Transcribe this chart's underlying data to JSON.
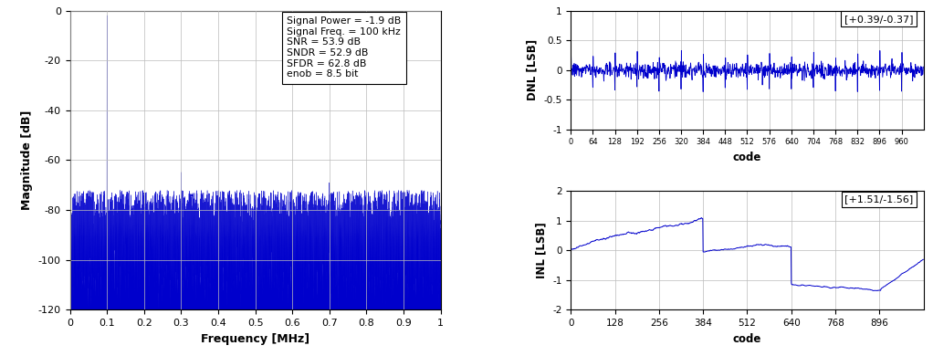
{
  "fft_xlabel": "Frequency [MHz]",
  "fft_ylabel": "Magnitude [dB]",
  "fft_xlim": [
    0,
    1
  ],
  "fft_ylim": [
    -120,
    0
  ],
  "fft_yticks": [
    0,
    -20,
    -40,
    -60,
    -80,
    -100,
    -120
  ],
  "fft_xticks": [
    0,
    0.1,
    0.2,
    0.3,
    0.4,
    0.5,
    0.6,
    0.7,
    0.8,
    0.9,
    1.0
  ],
  "fft_xtick_labels": [
    "0",
    "0.1",
    "0.2",
    "0.3",
    "0.4",
    "0.5",
    "0.6",
    "0.7",
    "0.8",
    "0.9",
    "1"
  ],
  "fft_ytick_labels": [
    "0",
    "-20",
    "-40",
    "-60",
    "-80",
    "-100",
    "-120"
  ],
  "fft_annotations": [
    "Signal Power = -1.9 dB",
    "Signal Freq. = 100 kHz",
    "SNR = 53.9 dB",
    "SNDR = 52.9 dB",
    "SFDR = 62.8 dB",
    "enob = 8.5 bit"
  ],
  "dnl_xlabel": "code",
  "dnl_ylabel": "DNL [LSB]",
  "dnl_xlim": [
    0,
    1024
  ],
  "dnl_ylim": [
    -1,
    1
  ],
  "dnl_yticks": [
    -1,
    -0.5,
    0,
    0.5,
    1
  ],
  "dnl_ytick_labels": [
    "-1",
    "-0.5",
    "0",
    "0.5",
    "1"
  ],
  "dnl_xticks": [
    0,
    64,
    128,
    192,
    256,
    320,
    384,
    448,
    512,
    576,
    640,
    704,
    768,
    832,
    896,
    960
  ],
  "dnl_label": "[+0.39/-0.37]",
  "inl_xlabel": "code",
  "inl_ylabel": "INL [LSB]",
  "inl_xlim": [
    0,
    1024
  ],
  "inl_ylim": [
    -2,
    2
  ],
  "inl_yticks": [
    -2,
    -1,
    0,
    1,
    2
  ],
  "inl_ytick_labels": [
    "-2",
    "-1",
    "0",
    "1",
    "2"
  ],
  "inl_xticks": [
    0,
    128,
    256,
    384,
    512,
    640,
    768,
    896
  ],
  "inl_label": "[+1.51/-1.56]",
  "line_color": "#0000cc",
  "bg_color": "#ffffff",
  "grid_color": "#bbbbbb"
}
